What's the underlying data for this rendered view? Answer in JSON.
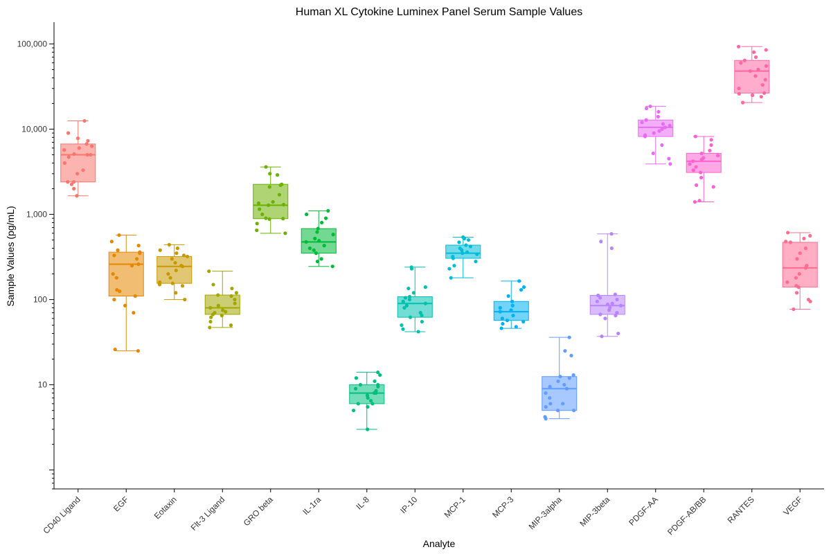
{
  "chart_data": {
    "type": "box",
    "title": "Human XL Cytokine Luminex Panel Serum Sample Values",
    "xlabel": "Analyte",
    "ylabel": "Sample Values (pg/mL)",
    "y_scale": "log10",
    "ylim": [
      0.6,
      180000
    ],
    "y_ticks": [
      1,
      10,
      100,
      1000,
      10000,
      100000
    ],
    "y_tick_labels": [
      "",
      "10",
      "100",
      "1,000",
      "10,000",
      "100,000"
    ],
    "grid": false,
    "legend": "none",
    "categories": [
      "CD40 Ligand",
      "EGF",
      "Eotaxin",
      "Flt-3 Ligand",
      "GRO beta",
      "IL-1ra",
      "IL-8",
      "IP-10",
      "MCP-1",
      "MCP-3",
      "MIP-3alpha",
      "MIP-3beta",
      "PDGF-AA",
      "PDGF-AB/BB",
      "RANTES",
      "VEGF"
    ],
    "colors": [
      "#F8766D",
      "#E58700",
      "#C99800",
      "#A3A500",
      "#6BB100",
      "#00BA38",
      "#00BF7D",
      "#00C0AF",
      "#00BCD8",
      "#00B0F6",
      "#619CFF",
      "#B983FF",
      "#E76BF3",
      "#FD61D1",
      "#FF67A4",
      "#FF6C91"
    ],
    "boxes": [
      {
        "name": "CD40 Ligand",
        "min": 1650,
        "q1": 2400,
        "median": 5000,
        "q3": 6700,
        "max": 12500,
        "points": [
          1650,
          2000,
          2250,
          2400,
          2400,
          3000,
          3300,
          4000,
          4700,
          5000,
          5000,
          5100,
          5700,
          6000,
          6300,
          6700,
          7300,
          7800,
          9000,
          12500
        ]
      },
      {
        "name": "EGF",
        "min": 25,
        "q1": 110,
        "median": 260,
        "q3": 360,
        "max": 570,
        "points": [
          25,
          26,
          70,
          85,
          100,
          110,
          125,
          130,
          180,
          200,
          250,
          260,
          300,
          330,
          350,
          360,
          380,
          430,
          480,
          570
        ]
      },
      {
        "name": "Eotaxin",
        "min": 100,
        "q1": 155,
        "median": 245,
        "q3": 320,
        "max": 440,
        "points": [
          100,
          120,
          145,
          150,
          155,
          160,
          180,
          200,
          220,
          245,
          250,
          270,
          300,
          320,
          330,
          350,
          380,
          400,
          440
        ]
      },
      {
        "name": "Flt-3 Ligand",
        "min": 47,
        "q1": 67,
        "median": 80,
        "q3": 113,
        "max": 215,
        "points": [
          47,
          50,
          55,
          62,
          65,
          67,
          70,
          72,
          75,
          80,
          85,
          90,
          100,
          110,
          113,
          120,
          135,
          150,
          215
        ]
      },
      {
        "name": "GRO beta",
        "min": 600,
        "q1": 890,
        "median": 1280,
        "q3": 2250,
        "max": 3600,
        "points": [
          600,
          650,
          780,
          880,
          890,
          900,
          1000,
          1150,
          1280,
          1300,
          1350,
          1400,
          1700,
          2100,
          2200,
          2250,
          2900,
          3000,
          3600
        ]
      },
      {
        "name": "IL-1ra",
        "min": 245,
        "q1": 350,
        "median": 475,
        "q3": 680,
        "max": 1100,
        "points": [
          245,
          280,
          300,
          350,
          380,
          400,
          430,
          475,
          490,
          520,
          580,
          620,
          680,
          800,
          900,
          1000,
          1100
        ]
      },
      {
        "name": "IL-8",
        "min": 3,
        "q1": 6,
        "median": 8,
        "q3": 10,
        "max": 14,
        "points": [
          3,
          5,
          5.5,
          6,
          6,
          6.5,
          7,
          7.5,
          8,
          8,
          8.5,
          9,
          9.5,
          10,
          10,
          11,
          12,
          13,
          14
        ]
      },
      {
        "name": "IP-10",
        "min": 42,
        "q1": 62,
        "median": 90,
        "q3": 108,
        "max": 240,
        "points": [
          42,
          45,
          50,
          55,
          62,
          65,
          70,
          80,
          85,
          90,
          95,
          100,
          105,
          108,
          120,
          135,
          140,
          230,
          240
        ]
      },
      {
        "name": "MCP-1",
        "min": 180,
        "q1": 305,
        "median": 350,
        "q3": 435,
        "max": 540,
        "points": [
          180,
          230,
          250,
          280,
          305,
          320,
          340,
          350,
          360,
          380,
          400,
          420,
          435,
          470,
          500,
          520,
          540
        ]
      },
      {
        "name": "MCP-3",
        "min": 46,
        "q1": 57,
        "median": 72,
        "q3": 95,
        "max": 165,
        "points": [
          46,
          48,
          52,
          55,
          57,
          60,
          65,
          72,
          75,
          80,
          85,
          95,
          110,
          130,
          140,
          165
        ]
      },
      {
        "name": "MIP-3alpha",
        "min": 4,
        "q1": 5,
        "median": 9,
        "q3": 12.5,
        "max": 36,
        "points": [
          4,
          4.2,
          5,
          5,
          5.5,
          6,
          6,
          7,
          8,
          9,
          9.5,
          10,
          11,
          12,
          12.5,
          13,
          22,
          25,
          36
        ]
      },
      {
        "name": "MIP-3beta",
        "min": 37,
        "q1": 67,
        "median": 85,
        "q3": 112,
        "max": 590,
        "points": [
          37,
          40,
          60,
          65,
          67,
          70,
          75,
          80,
          85,
          88,
          90,
          95,
          100,
          105,
          112,
          115,
          400,
          480,
          590
        ]
      },
      {
        "name": "PDGF-AA",
        "min": 3900,
        "q1": 8200,
        "median": 10500,
        "q3": 12800,
        "max": 18500,
        "points": [
          3900,
          4500,
          5200,
          6500,
          8200,
          8500,
          9000,
          9500,
          10000,
          10500,
          11000,
          11500,
          12000,
          12800,
          14000,
          16000,
          17500,
          18500
        ]
      },
      {
        "name": "PDGF-AB/BB",
        "min": 1400,
        "q1": 3100,
        "median": 4200,
        "q3": 5200,
        "max": 8200,
        "points": [
          1400,
          1450,
          2100,
          2200,
          2700,
          3100,
          3300,
          3600,
          3900,
          4200,
          4400,
          4600,
          4900,
          5200,
          5600,
          6500,
          7500,
          8200
        ]
      },
      {
        "name": "RANTES",
        "min": 20500,
        "q1": 26500,
        "median": 48000,
        "q3": 64000,
        "max": 93000,
        "points": [
          20500,
          24000,
          25000,
          26000,
          26500,
          30000,
          33000,
          38000,
          42000,
          48000,
          50000,
          55000,
          60000,
          64000,
          70000,
          80000,
          85000,
          93000
        ]
      },
      {
        "name": "VEGF",
        "min": 77,
        "q1": 140,
        "median": 235,
        "q3": 470,
        "max": 610,
        "points": [
          77,
          95,
          100,
          120,
          140,
          145,
          160,
          180,
          200,
          235,
          250,
          300,
          350,
          400,
          470,
          480,
          520,
          560,
          610
        ]
      }
    ]
  }
}
